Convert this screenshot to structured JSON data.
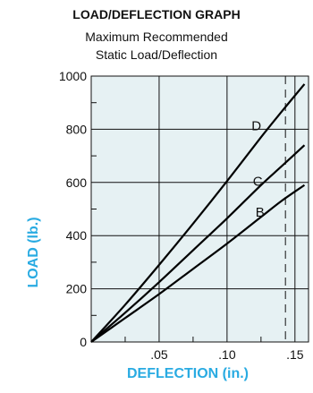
{
  "colors": {
    "accent": "#29abe2",
    "plot_bg": "#e6f1f3",
    "line": "#000000"
  },
  "chart_data": {
    "type": "line",
    "title": "LOAD/DEFLECTION GRAPH",
    "subtitle": [
      "Maximum Recommended",
      "Static Load/Deflection"
    ],
    "xlabel": "DEFLECTION (in.)",
    "ylabel": "LOAD (lb.)",
    "xlim": [
      0,
      0.16
    ],
    "ylim": [
      0,
      1000
    ],
    "x_ticks": [
      0.05,
      0.1,
      0.15
    ],
    "x_tick_labels": [
      ".05",
      ".10",
      ".15"
    ],
    "y_ticks": [
      0,
      200,
      400,
      600,
      800,
      1000
    ],
    "y_tick_labels": [
      "0",
      "200",
      "400",
      "600",
      "800",
      "1000"
    ],
    "grid": true,
    "reference_line": {
      "x": 0.143,
      "style": "dashed"
    },
    "series": [
      {
        "name": "D",
        "x": [
          0,
          0.025,
          0.05,
          0.075,
          0.1,
          0.125,
          0.14,
          0.157
        ],
        "y": [
          0,
          140,
          290,
          445,
          605,
          770,
          865,
          970
        ]
      },
      {
        "name": "C",
        "x": [
          0,
          0.025,
          0.05,
          0.075,
          0.1,
          0.125,
          0.14,
          0.157
        ],
        "y": [
          0,
          110,
          225,
          345,
          465,
          590,
          660,
          740
        ]
      },
      {
        "name": "B",
        "x": [
          0,
          0.025,
          0.05,
          0.075,
          0.1,
          0.125,
          0.14,
          0.157
        ],
        "y": [
          0,
          90,
          180,
          275,
          370,
          470,
          530,
          590
        ]
      }
    ]
  }
}
